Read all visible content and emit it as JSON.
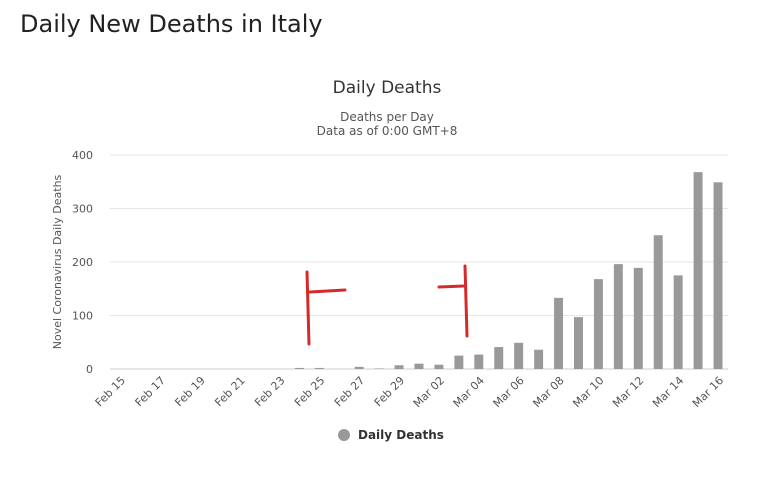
{
  "page": {
    "title": "Daily New Deaths in Italy"
  },
  "colors": {
    "bar": "#999999",
    "annotation": "#d62a2a",
    "grid": "#e6e6e6"
  },
  "chart_data": {
    "type": "bar",
    "title": "Daily Deaths",
    "subtitle_lines": [
      "Deaths per Day",
      "Data as of 0:00 GMT+8"
    ],
    "xlabel": "",
    "ylabel": "Novel Coronavirus Daily Deaths",
    "ylim": [
      0,
      400
    ],
    "yticks": [
      0,
      100,
      200,
      300,
      400
    ],
    "categories": [
      "Feb 15",
      "Feb 16",
      "Feb 17",
      "Feb 18",
      "Feb 19",
      "Feb 20",
      "Feb 21",
      "Feb 22",
      "Feb 23",
      "Feb 24",
      "Feb 25",
      "Feb 26",
      "Feb 27",
      "Feb 28",
      "Feb 29",
      "Mar 01",
      "Mar 02",
      "Mar 03",
      "Mar 04",
      "Mar 05",
      "Mar 06",
      "Mar 07",
      "Mar 08",
      "Mar 09",
      "Mar 10",
      "Mar 11",
      "Mar 12",
      "Mar 13",
      "Mar 14",
      "Mar 15",
      "Mar 16"
    ],
    "xtick_labels": [
      "Feb 15",
      "Feb 17",
      "Feb 19",
      "Feb 21",
      "Feb 23",
      "Feb 25",
      "Feb 27",
      "Feb 29",
      "Mar 02",
      "Mar 04",
      "Mar 06",
      "Mar 08",
      "Mar 10",
      "Mar 12",
      "Mar 14",
      "Mar 16"
    ],
    "series": [
      {
        "name": "Daily Deaths",
        "values": [
          0,
          0,
          0,
          0,
          0,
          0,
          0,
          0,
          0,
          2,
          2,
          0,
          4,
          1,
          7,
          10,
          8,
          25,
          27,
          41,
          49,
          36,
          133,
          97,
          168,
          196,
          189,
          250,
          175,
          368,
          349
        ]
      }
    ],
    "legend": {
      "position": "bottom-center",
      "items": [
        "Daily Deaths"
      ]
    },
    "grid": true,
    "annotations": {
      "type": "hand-drawn red bracket marks",
      "near": [
        "Feb 25",
        "Mar 04"
      ]
    }
  }
}
